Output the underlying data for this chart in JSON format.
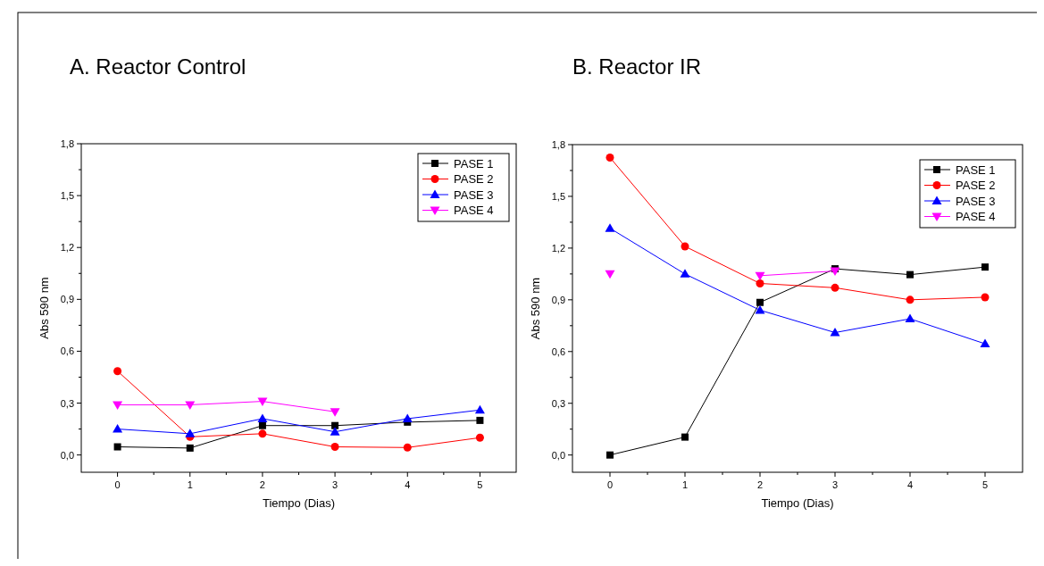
{
  "chart_data": [
    {
      "type": "line",
      "title": "A.   Reactor Control",
      "xlabel": "Tiempo (Dias)",
      "ylabel": "Abs 590 nm",
      "x": [
        0,
        1,
        2,
        3,
        4,
        5
      ],
      "xlim": [
        -0.5,
        5.5
      ],
      "xticks": [
        0,
        {
          "value": 0.5,
          "label": null
        },
        1,
        {
          "value": 1.5,
          "label": null
        },
        2,
        {
          "value": 2.5,
          "label": null
        },
        3,
        {
          "value": 3.5,
          "label": null
        },
        4,
        {
          "value": 4.5,
          "label": null
        },
        5
      ],
      "ylim": [
        -0.1,
        1.8
      ],
      "yticks": [
        {
          "value": 0,
          "label": "0,0"
        },
        {
          "value": 0.15,
          "label": null
        },
        {
          "value": 0.3,
          "label": "0,3"
        },
        {
          "value": 0.45,
          "label": null
        },
        {
          "value": 0.6,
          "label": "0,6"
        },
        {
          "value": 0.75,
          "label": null
        },
        {
          "value": 0.9,
          "label": "0,9"
        },
        {
          "value": 1.05,
          "label": null
        },
        {
          "value": 1.2,
          "label": "1,2"
        },
        {
          "value": 1.35,
          "label": null
        },
        {
          "value": 1.5,
          "label": "1,5"
        },
        {
          "value": 1.65,
          "label": null
        },
        {
          "value": 1.8,
          "label": "1,8"
        }
      ],
      "legend": "top right",
      "grid": false,
      "series": [
        {
          "name": "PASE 1",
          "color": "#000000",
          "marker": "square",
          "values": [
            0.047,
            0.04,
            0.17,
            0.17,
            0.19,
            0.2
          ]
        },
        {
          "name": "PASE 2",
          "color": "#ff0000",
          "marker": "circle",
          "values": [
            0.485,
            0.105,
            0.123,
            0.047,
            0.043,
            0.1
          ]
        },
        {
          "name": "PASE 3",
          "color": "#0000ff",
          "marker": "triangle",
          "values": [
            0.15,
            0.123,
            0.21,
            0.134,
            0.21,
            0.26
          ]
        },
        {
          "name": "PASE 4",
          "color": "#ff00ff",
          "marker": "triangle-down",
          "values": [
            0.29,
            0.29,
            0.31,
            0.25,
            null,
            null
          ]
        }
      ]
    },
    {
      "type": "line",
      "title": "B. Reactor IR",
      "xlabel": "Tiempo (Dias)",
      "ylabel": "Abs 590 nm",
      "x": [
        0,
        1,
        2,
        3,
        4,
        5
      ],
      "xlim": [
        -0.5,
        5.5
      ],
      "xticks": [
        0,
        {
          "value": 0.5,
          "label": null
        },
        1,
        {
          "value": 1.5,
          "label": null
        },
        2,
        {
          "value": 2.5,
          "label": null
        },
        3,
        {
          "value": 3.5,
          "label": null
        },
        4,
        {
          "value": 4.5,
          "label": null
        },
        5
      ],
      "ylim": [
        -0.1,
        1.8
      ],
      "yticks": [
        {
          "value": 0,
          "label": "0,0"
        },
        {
          "value": 0.15,
          "label": null
        },
        {
          "value": 0.3,
          "label": "0,3"
        },
        {
          "value": 0.45,
          "label": null
        },
        {
          "value": 0.6,
          "label": "0,6"
        },
        {
          "value": 0.75,
          "label": null
        },
        {
          "value": 0.9,
          "label": "0,9"
        },
        {
          "value": 1.05,
          "label": null
        },
        {
          "value": 1.2,
          "label": "1,2"
        },
        {
          "value": 1.35,
          "label": null
        },
        {
          "value": 1.5,
          "label": "1,5"
        },
        {
          "value": 1.65,
          "label": null
        },
        {
          "value": 1.8,
          "label": "1,8"
        }
      ],
      "legend": "top right",
      "grid": false,
      "series": [
        {
          "name": "PASE 1",
          "color": "#000000",
          "marker": "square",
          "values": [
            0,
            0.104,
            0.885,
            1.08,
            1.046,
            1.09
          ]
        },
        {
          "name": "PASE 2",
          "color": "#ff0000",
          "marker": "circle",
          "values": [
            1.725,
            1.21,
            0.995,
            0.97,
            0.9,
            0.915
          ]
        },
        {
          "name": "PASE 3",
          "color": "#0000ff",
          "marker": "triangle",
          "values": [
            1.315,
            1.05,
            0.84,
            0.71,
            0.79,
            0.645
          ]
        },
        {
          "name": "PASE 4",
          "color": "#ff00ff",
          "marker": "triangle-down",
          "values": [
            1.05,
            null,
            1.04,
            1.067,
            null,
            null
          ]
        }
      ]
    }
  ]
}
